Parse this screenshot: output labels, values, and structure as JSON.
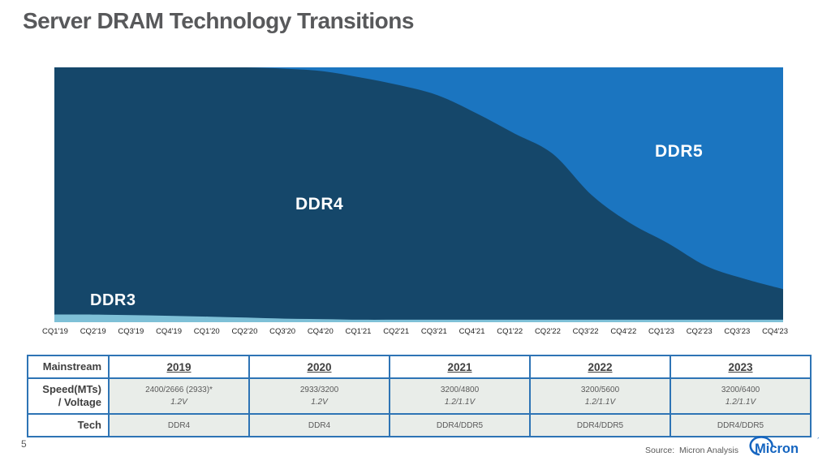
{
  "slide": {
    "title": "Server DRAM Technology Transitions",
    "page_number": "5",
    "source_text": "Source:  Micron Analysis",
    "logo_text": "Micron",
    "logo_tick": "´"
  },
  "colors": {
    "ddr3": "#7EC0D7",
    "ddr4": "#15476A",
    "ddr5": "#1B75C0",
    "table_border": "#2E74B5",
    "table_cell_bg": "#E9EDE9",
    "title_gray": "#58595B",
    "logo_blue": "#1565C0"
  },
  "chart_data": {
    "type": "area",
    "stacking": "percent100",
    "title": "",
    "xlabel": "",
    "ylabel": "",
    "ylim": [
      0,
      100
    ],
    "grid": false,
    "legend": "in-area labels",
    "estimation_note": "values estimated from stacked-area boundaries (no y-axis shown)",
    "x": [
      "CQ1'19",
      "CQ2'19",
      "CQ3'19",
      "CQ4'19",
      "CQ1'20",
      "CQ2'20",
      "CQ3'20",
      "CQ4'20",
      "CQ1'21",
      "CQ2'21",
      "CQ3'21",
      "CQ4'21",
      "CQ1'22",
      "CQ2'22",
      "CQ3'22",
      "CQ4'22",
      "CQ1'23",
      "CQ2'23",
      "CQ3'23",
      "CQ4'23"
    ],
    "series": [
      {
        "name": "DDR3",
        "values": [
          3,
          3,
          2.8,
          2.5,
          2.2,
          1.8,
          1.4,
          1.2,
          1,
          1,
          1,
          1,
          1,
          1,
          1,
          1,
          1,
          1,
          1,
          1
        ]
      },
      {
        "name": "DDR4",
        "values": [
          97,
          97,
          97.2,
          97.5,
          97.8,
          98.2,
          98.1,
          97.3,
          95,
          92,
          88,
          81,
          73,
          65,
          49,
          38,
          30,
          21,
          16,
          12
        ]
      },
      {
        "name": "DDR5",
        "values": [
          0,
          0,
          0,
          0,
          0,
          0,
          0.5,
          1.5,
          4,
          7,
          11,
          18,
          26,
          34,
          50,
          61,
          69,
          78,
          83,
          87
        ]
      }
    ]
  },
  "table": {
    "corner_label": "Mainstream",
    "years": [
      "2019",
      "2020",
      "2021",
      "2022",
      "2023"
    ],
    "speed_label_line1": "Speed(MTs)",
    "speed_label_line2": "/ Voltage",
    "tech_label": "Tech",
    "speeds": [
      "2400/2666 (2933)*",
      "2933/3200",
      "3200/4800",
      "3200/5600",
      "3200/6400"
    ],
    "voltages": [
      "1.2V",
      "1.2V",
      "1.2/1.1V",
      "1.2/1.1V",
      "1.2/1.1V"
    ],
    "techs": [
      "DDR4",
      "DDR4",
      "DDR4/DDR5",
      "DDR4/DDR5",
      "DDR4/DDR5"
    ]
  }
}
